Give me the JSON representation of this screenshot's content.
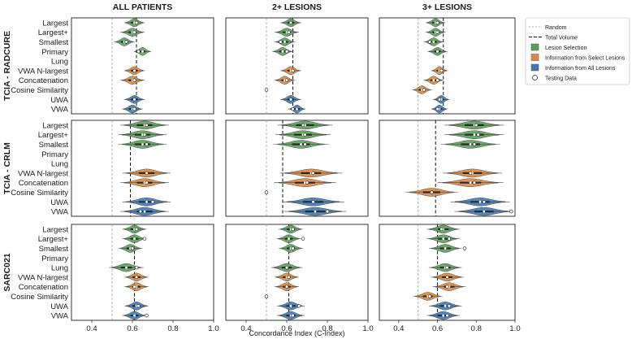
{
  "chart_data": {
    "type": "violin",
    "title": "",
    "xlabel": "Concordance Index (C-Index)",
    "xlim": [
      0.3,
      1.0
    ],
    "xticks": [
      0.4,
      0.6,
      0.8,
      1.0
    ],
    "tick_labels": [
      "0.4",
      "0.6",
      "0.8",
      "1.0"
    ],
    "random_line": 0.5,
    "columns": [
      "ALL PATIENTS",
      "2+ LESIONS",
      "3+ LESIONS"
    ],
    "rows": [
      "TCIA - RADCURE",
      "TCIA - CRLM",
      "SARC021"
    ],
    "categories": [
      "Largest",
      "Largest+",
      "Smallest",
      "Primary",
      "Lung",
      "VWA N-largest",
      "Concatenation",
      "Cosine Similarity",
      "UWA",
      "VWA"
    ],
    "category_groups": [
      "Lesion Selection",
      "Lesion Selection",
      "Lesion Selection",
      "Lesion Selection",
      "Lesion Selection",
      "Information from Select Lesions",
      "Information from Select Lesions",
      "Information from Select Lesions",
      "Information from All Lesions",
      "Information from All Lesions"
    ],
    "colors": {
      "Lesion Selection": "#5aa05a",
      "Information from Select Lesions": "#dd8840",
      "Information from All Lesions": "#3f7ab4"
    },
    "legend": {
      "position": "right",
      "entries": [
        {
          "label": "Random",
          "kind": "line-dotted"
        },
        {
          "label": "Total Volume",
          "kind": "line-dashed"
        },
        {
          "label": "Lesion Selection",
          "kind": "patch",
          "color": "#5aa05a"
        },
        {
          "label": "Information from Select Lesions",
          "kind": "patch",
          "color": "#dd8840"
        },
        {
          "label": "Information from All Lesions",
          "kind": "patch",
          "color": "#3f7ab4"
        },
        {
          "label": "Testing Data",
          "kind": "marker"
        }
      ]
    },
    "panels": [
      {
        "row": 0,
        "col": 0,
        "total_volume": 0.62,
        "violins": [
          {
            "category": "Largest",
            "center": 0.61,
            "spread": 0.03,
            "median": 0.61,
            "test": 0.62
          },
          {
            "category": "Largest+",
            "center": 0.6,
            "spread": 0.035,
            "median": 0.6,
            "test": 0.61
          },
          {
            "category": "Smallest",
            "center": 0.56,
            "spread": 0.03,
            "median": 0.56,
            "test": 0.57
          },
          {
            "category": "Primary",
            "center": 0.65,
            "spread": 0.025,
            "median": 0.65,
            "test": 0.63
          },
          {
            "category": "VWA N-largest",
            "center": 0.61,
            "spread": 0.03,
            "median": 0.61,
            "test": 0.61
          },
          {
            "category": "Concatenation",
            "center": 0.6,
            "spread": 0.035,
            "median": 0.6,
            "test": 0.61
          },
          {
            "category": "UWA",
            "center": 0.61,
            "spread": 0.03,
            "median": 0.61,
            "test": 0.61
          },
          {
            "category": "VWA",
            "center": 0.6,
            "spread": 0.03,
            "median": 0.6,
            "test": 0.61
          }
        ]
      },
      {
        "row": 0,
        "col": 1,
        "total_volume": 0.63,
        "violins": [
          {
            "category": "Largest",
            "center": 0.62,
            "spread": 0.03,
            "median": 0.62,
            "test": 0.62
          },
          {
            "category": "Largest+",
            "center": 0.6,
            "spread": 0.035,
            "median": 0.6,
            "test": 0.61
          },
          {
            "category": "Smallest",
            "center": 0.59,
            "spread": 0.03,
            "median": 0.59,
            "test": 0.57
          },
          {
            "category": "Primary",
            "center": 0.58,
            "spread": 0.03,
            "median": 0.58,
            "test": 0.6
          },
          {
            "category": "VWA N-largest",
            "center": 0.62,
            "spread": 0.03,
            "median": 0.62,
            "test": 0.63
          },
          {
            "category": "Concatenation",
            "center": 0.59,
            "spread": 0.03,
            "median": 0.59,
            "test": 0.6
          },
          {
            "category": "Cosine Similarity",
            "center": null,
            "spread": 0,
            "median": null,
            "test": 0.5
          },
          {
            "category": "UWA",
            "center": 0.62,
            "spread": 0.03,
            "median": 0.62,
            "test": 0.62
          },
          {
            "category": "VWA",
            "center": 0.65,
            "spread": 0.025,
            "median": 0.65,
            "test": 0.63
          }
        ]
      },
      {
        "row": 0,
        "col": 2,
        "total_volume": 0.63,
        "violins": [
          {
            "category": "Largest",
            "center": 0.59,
            "spread": 0.03,
            "median": 0.59,
            "test": 0.6
          },
          {
            "category": "Largest+",
            "center": 0.59,
            "spread": 0.03,
            "median": 0.59,
            "test": 0.6
          },
          {
            "category": "Smallest",
            "center": 0.58,
            "spread": 0.03,
            "median": 0.58,
            "test": 0.56
          },
          {
            "category": "Primary",
            "center": 0.6,
            "spread": 0.03,
            "median": 0.6,
            "test": 0.6
          },
          {
            "category": "VWA N-largest",
            "center": 0.61,
            "spread": 0.025,
            "median": 0.61,
            "test": 0.62
          },
          {
            "category": "Concatenation",
            "center": 0.58,
            "spread": 0.03,
            "median": 0.58,
            "test": 0.6
          },
          {
            "category": "Cosine Similarity",
            "center": 0.52,
            "spread": 0.03,
            "median": 0.52,
            "test": 0.53
          },
          {
            "category": "UWA",
            "center": 0.62,
            "spread": 0.025,
            "median": 0.62,
            "test": 0.61
          },
          {
            "category": "VWA",
            "center": 0.61,
            "spread": 0.025,
            "median": 0.61,
            "test": 0.6
          }
        ]
      },
      {
        "row": 1,
        "col": 0,
        "total_volume": 0.59,
        "violins": [
          {
            "category": "Largest",
            "center": 0.66,
            "spread": 0.07,
            "median": 0.66,
            "test": 0.67
          },
          {
            "category": "Largest+",
            "center": 0.65,
            "spread": 0.07,
            "median": 0.65,
            "test": 0.66
          },
          {
            "category": "Smallest",
            "center": 0.65,
            "spread": 0.07,
            "median": 0.65,
            "test": 0.67
          },
          {
            "category": "VWA N-largest",
            "center": 0.67,
            "spread": 0.07,
            "median": 0.67,
            "test": 0.67
          },
          {
            "category": "Concatenation",
            "center": 0.66,
            "spread": 0.07,
            "median": 0.66,
            "test": 0.67
          },
          {
            "category": "UWA",
            "center": 0.67,
            "spread": 0.07,
            "median": 0.67,
            "test": 0.7
          },
          {
            "category": "VWA",
            "center": 0.66,
            "spread": 0.07,
            "median": 0.66,
            "test": 0.64
          }
        ]
      },
      {
        "row": 1,
        "col": 1,
        "total_volume": 0.58,
        "violins": [
          {
            "category": "Largest",
            "center": 0.69,
            "spread": 0.08,
            "median": 0.69,
            "test": 0.68
          },
          {
            "category": "Largest+",
            "center": 0.68,
            "spread": 0.08,
            "median": 0.68,
            "test": 0.69
          },
          {
            "category": "Smallest",
            "center": 0.67,
            "spread": 0.08,
            "median": 0.67,
            "test": 0.69
          },
          {
            "category": "VWA N-largest",
            "center": 0.72,
            "spread": 0.09,
            "median": 0.72,
            "test": 0.73
          },
          {
            "category": "Concatenation",
            "center": 0.69,
            "spread": 0.09,
            "median": 0.69,
            "test": 0.7
          },
          {
            "category": "Cosine Similarity",
            "center": null,
            "spread": 0,
            "median": null,
            "test": 0.5
          },
          {
            "category": "UWA",
            "center": 0.73,
            "spread": 0.09,
            "median": 0.73,
            "test": 0.73
          },
          {
            "category": "VWA",
            "center": 0.74,
            "spread": 0.09,
            "median": 0.74,
            "test": 0.8
          }
        ]
      },
      {
        "row": 1,
        "col": 2,
        "total_volume": 0.59,
        "violins": [
          {
            "category": "Largest",
            "center": 0.79,
            "spread": 0.09,
            "median": 0.79,
            "test": 0.8
          },
          {
            "category": "Largest+",
            "center": 0.79,
            "spread": 0.09,
            "median": 0.79,
            "test": 0.81
          },
          {
            "category": "Smallest",
            "center": 0.77,
            "spread": 0.09,
            "median": 0.77,
            "test": 0.79
          },
          {
            "category": "VWA N-largest",
            "center": 0.78,
            "spread": 0.09,
            "median": 0.78,
            "test": 0.77
          },
          {
            "category": "Concatenation",
            "center": 0.77,
            "spread": 0.1,
            "median": 0.77,
            "test": 0.79
          },
          {
            "category": "Cosine Similarity",
            "center": 0.57,
            "spread": 0.08,
            "median": 0.57,
            "test": 0.57
          },
          {
            "category": "UWA",
            "center": 0.82,
            "spread": 0.09,
            "median": 0.82,
            "test": 0.84
          },
          {
            "category": "VWA",
            "center": 0.84,
            "spread": 0.09,
            "median": 0.84,
            "test": 0.98
          }
        ]
      },
      {
        "row": 2,
        "col": 0,
        "total_volume": 0.61,
        "violins": [
          {
            "category": "Largest",
            "center": 0.61,
            "spread": 0.035,
            "median": 0.61,
            "test": 0.62
          },
          {
            "category": "Largest+",
            "center": 0.61,
            "spread": 0.035,
            "median": 0.61,
            "test": 0.66
          },
          {
            "category": "Smallest",
            "center": 0.59,
            "spread": 0.035,
            "median": 0.59,
            "test": 0.6
          },
          {
            "category": "Lung",
            "center": 0.57,
            "spread": 0.05,
            "median": 0.57,
            "test": 0.62
          },
          {
            "category": "VWA N-largest",
            "center": 0.62,
            "spread": 0.035,
            "median": 0.62,
            "test": 0.62
          },
          {
            "category": "Concatenation",
            "center": 0.62,
            "spread": 0.035,
            "median": 0.62,
            "test": 0.61
          },
          {
            "category": "UWA",
            "center": 0.62,
            "spread": 0.035,
            "median": 0.62,
            "test": 0.63
          },
          {
            "category": "VWA",
            "center": 0.61,
            "spread": 0.035,
            "median": 0.61,
            "test": 0.67
          }
        ]
      },
      {
        "row": 2,
        "col": 1,
        "total_volume": 0.61,
        "violins": [
          {
            "category": "Largest",
            "center": 0.62,
            "spread": 0.035,
            "median": 0.62,
            "test": 0.63
          },
          {
            "category": "Largest+",
            "center": 0.61,
            "spread": 0.035,
            "median": 0.61,
            "test": 0.68
          },
          {
            "category": "Smallest",
            "center": 0.62,
            "spread": 0.035,
            "median": 0.62,
            "test": 0.63
          },
          {
            "category": "Lung",
            "center": 0.6,
            "spread": 0.045,
            "median": 0.6,
            "test": 0.6
          },
          {
            "category": "VWA N-largest",
            "center": 0.6,
            "spread": 0.035,
            "median": 0.6,
            "test": 0.61
          },
          {
            "category": "Concatenation",
            "center": 0.6,
            "spread": 0.035,
            "median": 0.6,
            "test": 0.6
          },
          {
            "category": "Cosine Similarity",
            "center": null,
            "spread": 0,
            "median": null,
            "test": 0.5
          },
          {
            "category": "UWA",
            "center": 0.62,
            "spread": 0.04,
            "median": 0.62,
            "test": 0.66
          },
          {
            "category": "VWA",
            "center": 0.62,
            "spread": 0.04,
            "median": 0.62,
            "test": 0.63
          }
        ]
      },
      {
        "row": 2,
        "col": 2,
        "total_volume": 0.6,
        "violins": [
          {
            "category": "Largest",
            "center": 0.63,
            "spread": 0.05,
            "median": 0.63,
            "test": 0.62
          },
          {
            "category": "Largest+",
            "center": 0.63,
            "spread": 0.05,
            "median": 0.63,
            "test": 0.66
          },
          {
            "category": "Smallest",
            "center": 0.64,
            "spread": 0.05,
            "median": 0.64,
            "test": 0.74
          },
          {
            "category": "Lung",
            "center": 0.64,
            "spread": 0.05,
            "median": 0.64,
            "test": 0.65
          },
          {
            "category": "VWA N-largest",
            "center": 0.65,
            "spread": 0.05,
            "median": 0.65,
            "test": 0.65
          },
          {
            "category": "Concatenation",
            "center": 0.66,
            "spread": 0.05,
            "median": 0.66,
            "test": 0.65
          },
          {
            "category": "Cosine Similarity",
            "center": 0.55,
            "spread": 0.045,
            "median": 0.55,
            "test": 0.56
          },
          {
            "category": "UWA",
            "center": 0.64,
            "spread": 0.05,
            "median": 0.64,
            "test": 0.66
          },
          {
            "category": "VWA",
            "center": 0.63,
            "spread": 0.05,
            "median": 0.63,
            "test": 0.65
          }
        ]
      }
    ]
  }
}
